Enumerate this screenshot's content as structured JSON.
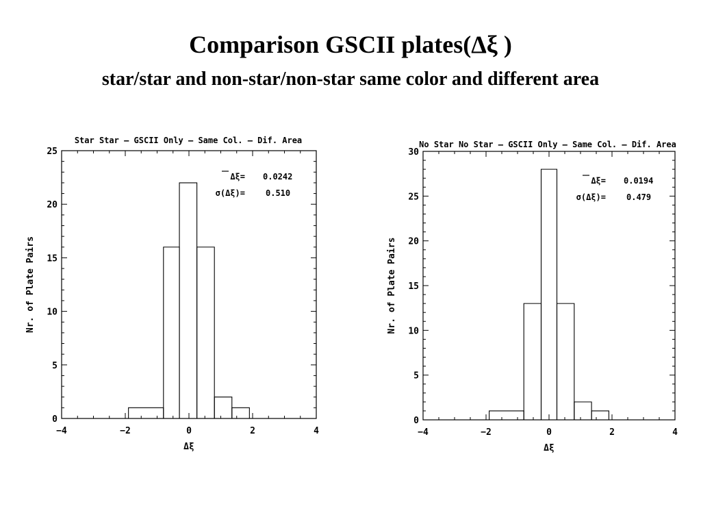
{
  "slide": {
    "title": "Comparison GSCII plates(Δξ )",
    "subtitle": "star/star and non-star/non-star same color and different area"
  },
  "chart_data": [
    {
      "type": "histogram",
      "title": "Star Star – GSCII Only – Same Col. – Dif. Area",
      "xlabel": "Δξ",
      "ylabel": "Nr. of Plate Pairs",
      "xlim": [
        -4,
        4
      ],
      "ylim": [
        0,
        25
      ],
      "xticks": [
        -4,
        -2,
        0,
        2,
        4
      ],
      "yticks": [
        0,
        5,
        10,
        15,
        20,
        25
      ],
      "bin_edges": [
        -1.9,
        -0.8,
        -0.3,
        0.25,
        0.8,
        1.35,
        1.9
      ],
      "counts": [
        1,
        16,
        22,
        16,
        2,
        1
      ],
      "annotations": [
        {
          "label": "Δξ=",
          "value": "0.0242"
        },
        {
          "label": "σ(Δξ)=",
          "value": "0.510"
        }
      ]
    },
    {
      "type": "histogram",
      "title": "No Star No Star – GSCII Only – Same Col. – Dif. Area",
      "xlabel": "Δξ",
      "ylabel": "Nr. of Plate Pairs",
      "xlim": [
        -4,
        4
      ],
      "ylim": [
        0,
        30
      ],
      "xticks": [
        -4,
        -2,
        0,
        2,
        4
      ],
      "yticks": [
        0,
        5,
        10,
        15,
        20,
        25,
        30
      ],
      "bin_edges": [
        -1.9,
        -0.8,
        -0.25,
        0.25,
        0.8,
        1.35,
        1.9
      ],
      "counts": [
        1,
        13,
        28,
        13,
        2,
        1
      ],
      "annotations": [
        {
          "label": "Δξ=",
          "value": "0.0194"
        },
        {
          "label": "σ(Δξ)=",
          "value": "0.479"
        }
      ]
    }
  ]
}
